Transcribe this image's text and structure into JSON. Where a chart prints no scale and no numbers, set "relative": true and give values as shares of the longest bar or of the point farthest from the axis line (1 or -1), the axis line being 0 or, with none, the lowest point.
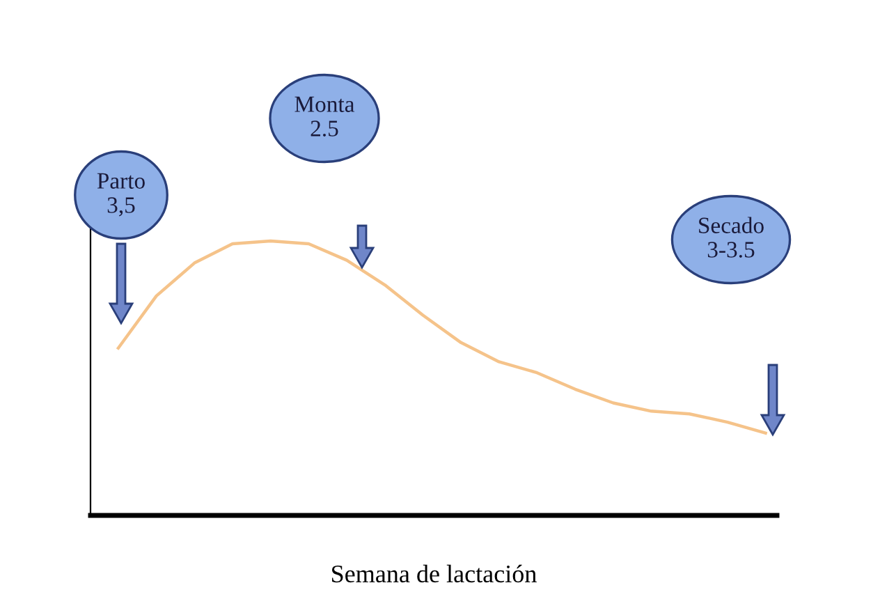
{
  "chart_data": {
    "type": "line",
    "relative": true,
    "xlabel": "Semana de lactación",
    "color": "#f5c38a",
    "categories": [
      null,
      null,
      null,
      null,
      null,
      null,
      null,
      null,
      null,
      null,
      null,
      null,
      null,
      null,
      null,
      null,
      null,
      null
    ],
    "values": [
      0.61,
      0.8,
      0.92,
      0.99,
      1.0,
      0.99,
      0.93,
      0.84,
      0.73,
      0.63,
      0.56,
      0.52,
      0.46,
      0.41,
      0.38,
      0.37,
      0.34,
      0.3
    ],
    "annotations": [
      "Parto\n3,5",
      "Monta\n2.5",
      "Secado\n3-3.5"
    ]
  }
}
